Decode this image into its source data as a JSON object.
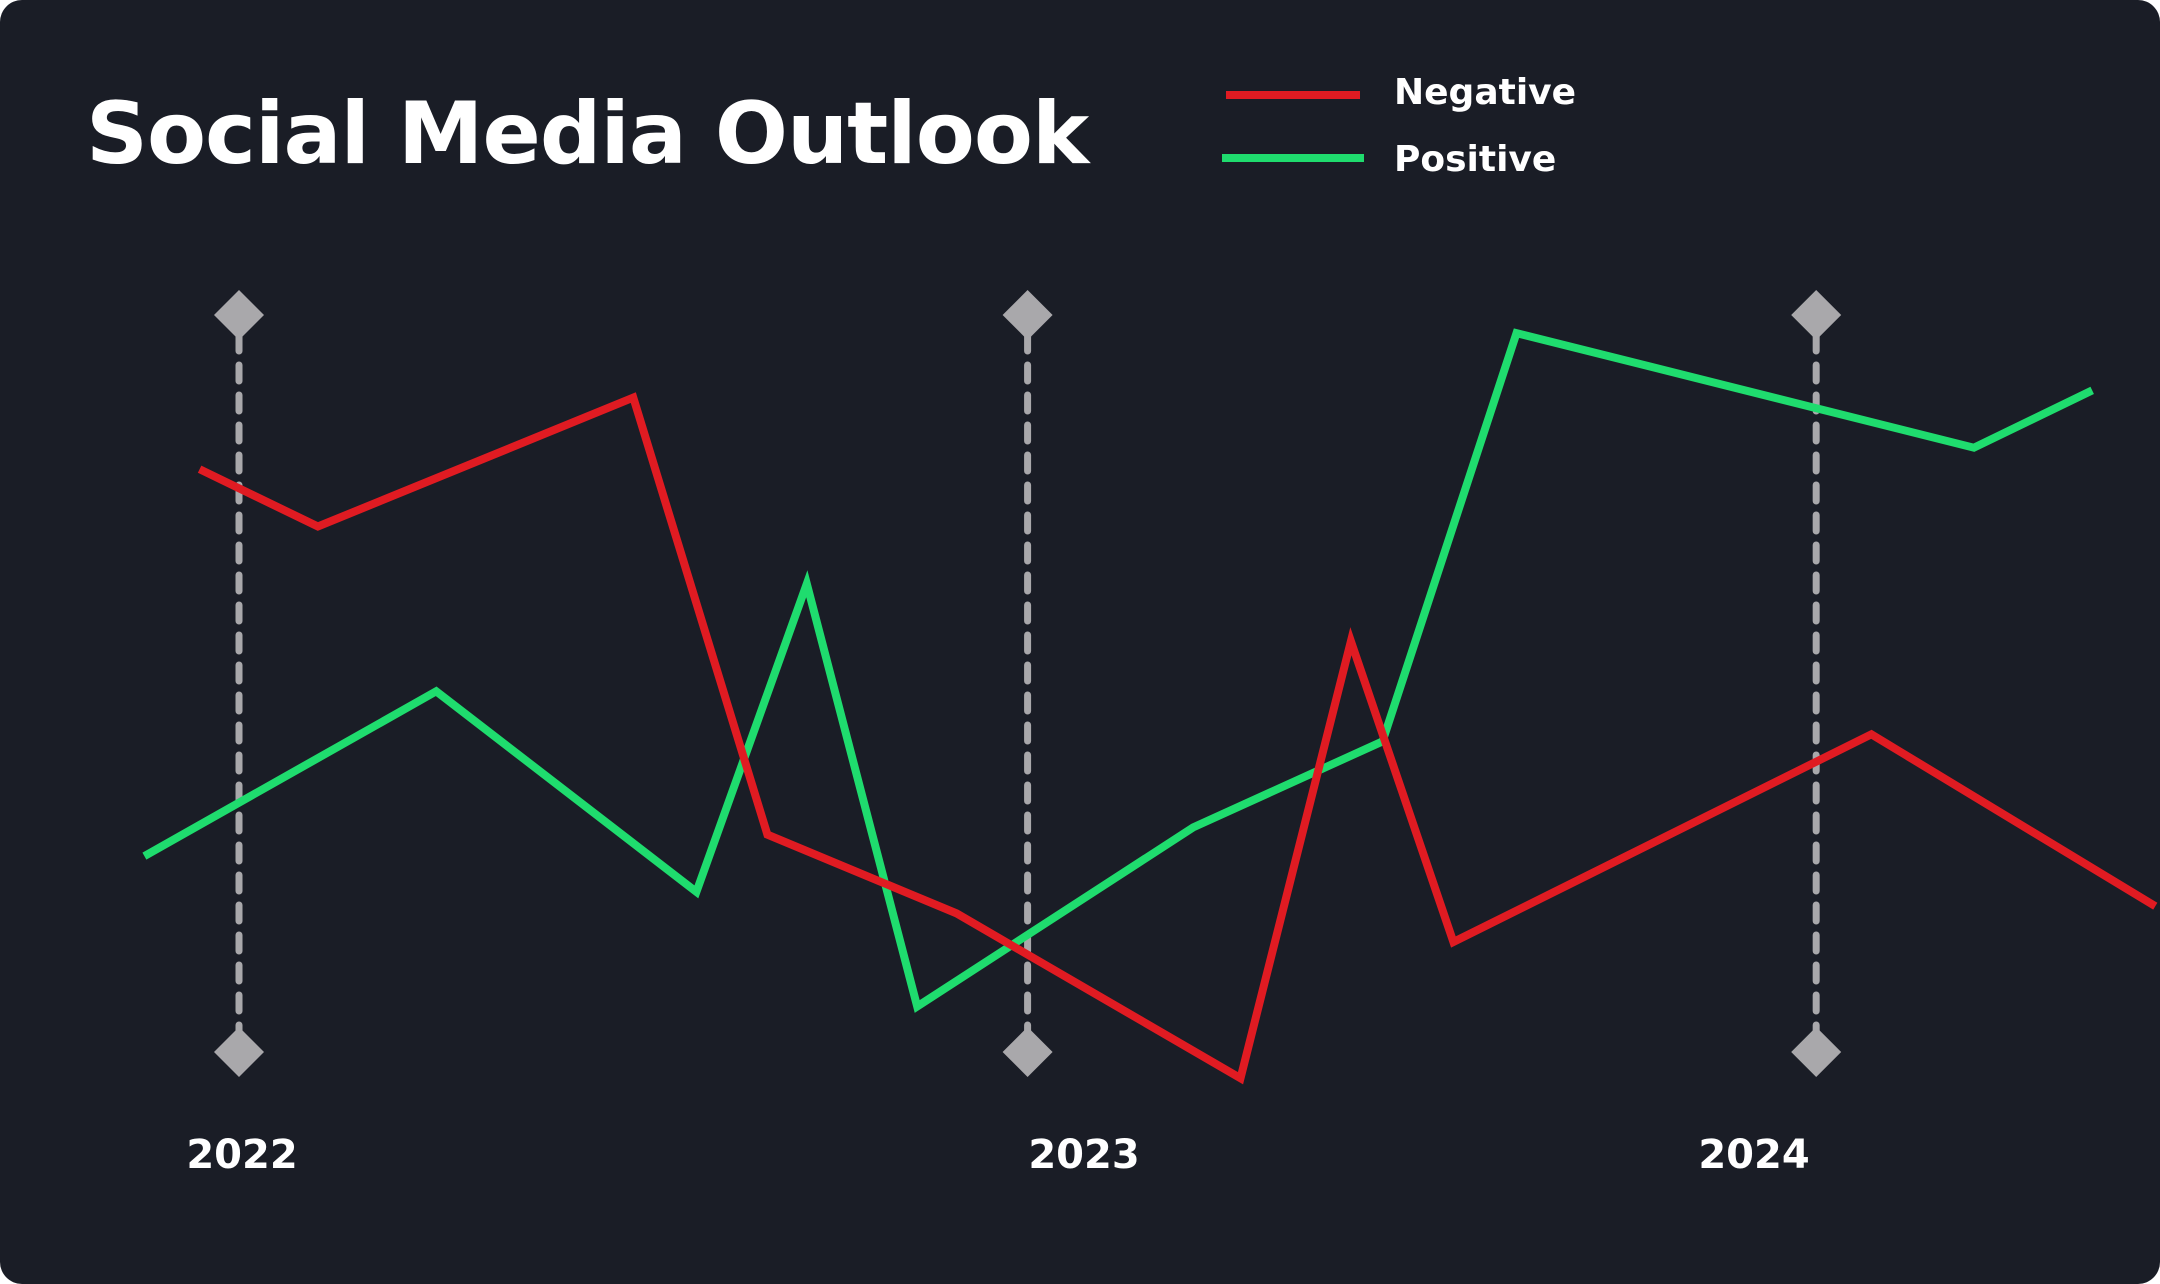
{
  "chart_data": {
    "type": "line",
    "title": "Social Media Outlook",
    "xlabel": "",
    "ylabel": "",
    "x_ticks": [
      "2022",
      "2023",
      "2024"
    ],
    "legend_position": "top-right",
    "grid": false,
    "series": [
      {
        "name": "Negative",
        "color": "#e01b22",
        "values": [
          {
            "x": 2021.95,
            "y": 0.81
          },
          {
            "x": 2022.1,
            "y": 0.73
          },
          {
            "x": 2022.5,
            "y": 0.91
          },
          {
            "x": 2022.67,
            "y": 0.3
          },
          {
            "x": 2022.91,
            "y": 0.19
          },
          {
            "x": 2023.27,
            "y": -0.04
          },
          {
            "x": 2023.41,
            "y": 0.57
          },
          {
            "x": 2023.54,
            "y": 0.15
          },
          {
            "x": 2024.07,
            "y": 0.44
          },
          {
            "x": 2024.43,
            "y": 0.2
          }
        ]
      },
      {
        "name": "Positive",
        "color": "#1fdc6e",
        "values": [
          {
            "x": 2021.88,
            "y": 0.27
          },
          {
            "x": 2022.25,
            "y": 0.5
          },
          {
            "x": 2022.58,
            "y": 0.22
          },
          {
            "x": 2022.72,
            "y": 0.65
          },
          {
            "x": 2022.86,
            "y": 0.06
          },
          {
            "x": 2023.21,
            "y": 0.31
          },
          {
            "x": 2023.45,
            "y": 0.43
          },
          {
            "x": 2023.62,
            "y": 1.0
          },
          {
            "x": 2024.2,
            "y": 0.84
          },
          {
            "x": 2024.35,
            "y": 0.92
          }
        ]
      }
    ],
    "markers": [
      {
        "x": 2022
      },
      {
        "x": 2023
      },
      {
        "x": 2024
      }
    ],
    "xlim": [
      2021.773,
      2024.436
    ],
    "ylim": [
      -0.104,
      1.116
    ],
    "marker_color": "#a9a8ab"
  }
}
